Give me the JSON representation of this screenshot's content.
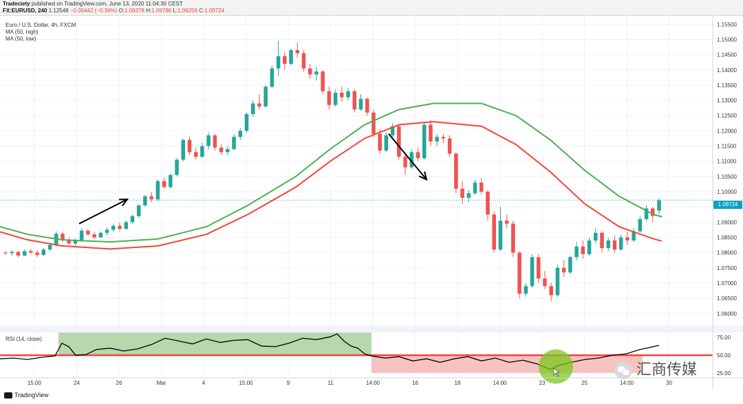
{
  "header": {
    "publisher": "Tradeciety",
    "published_text": "published on TradingView.com, June 13, 2020 11:04:30 CEST",
    "symbol": "FX:EURUSD, 240",
    "last": "1.12548",
    "change": "−0.00442 (−0.39%)",
    "ohlc_label_o": "O:",
    "ohlc_o": "1.09378",
    "ohlc_label_h": "H:",
    "ohlc_h": "1.09786",
    "ohlc_label_l": "L:",
    "ohlc_l": "1.09259",
    "ohlc_label_c": "C:",
    "ohlc_c": "1.09724"
  },
  "legend": {
    "instrument": "Euro / U.S. Dollar, 4h, FXCM",
    "ma_high": "MA (50, high)",
    "ma_low": "MA (50, low)"
  },
  "rsi_title": "RSI (14, close)",
  "last_price_label": "1.09724",
  "footer": {
    "logo_text": "TradingView"
  },
  "watermark": "汇商传媒",
  "colors": {
    "bull": "#26a69a",
    "bear": "#ef5350",
    "ma_high": "#4caf50",
    "ma_low": "#f44336",
    "rsi_line": "#000000",
    "rsi_level": "#f44336",
    "overbought_fill": "#b7d7ae",
    "oversold_fill": "#f6c3c0",
    "price_line": "#0aa2c0"
  },
  "chart_data": [
    {
      "type": "candlestick",
      "title": "Euro / U.S. Dollar, 4h, FXCM",
      "ylim": [
        1.056,
        1.158
      ],
      "y_ticks": [
        "1.15500",
        "1.15000",
        "1.14500",
        "1.14000",
        "1.13500",
        "1.13000",
        "1.12500",
        "1.12000",
        "1.11500",
        "1.11000",
        "1.10500",
        "1.10000",
        "1.09500",
        "1.09000",
        "1.08500",
        "1.08000",
        "1.07500",
        "1.07000",
        "1.06500",
        "1.06000"
      ],
      "x_tick_labels": [
        "15:00",
        "24",
        "26",
        "Mar",
        "4",
        "15:00",
        "9",
        "11",
        "14:00",
        "16",
        "18",
        "14:00",
        "23",
        "25",
        "14:00",
        "30"
      ],
      "last_price": 1.09724,
      "ohlc": [
        [
          1.08,
          1.0805,
          1.0792,
          1.0798
        ],
        [
          1.0798,
          1.0808,
          1.079,
          1.0802
        ],
        [
          1.0802,
          1.0806,
          1.0785,
          1.079
        ],
        [
          1.079,
          1.081,
          1.0788,
          1.0805
        ],
        [
          1.0805,
          1.0812,
          1.0795,
          1.08
        ],
        [
          1.08,
          1.0808,
          1.0785,
          1.0792
        ],
        [
          1.0792,
          1.0815,
          1.079,
          1.081
        ],
        [
          1.081,
          1.083,
          1.0805,
          1.0825
        ],
        [
          1.0825,
          1.087,
          1.082,
          1.0862
        ],
        [
          1.0862,
          1.0868,
          1.0835,
          1.0842
        ],
        [
          1.0842,
          1.085,
          1.0825,
          1.083
        ],
        [
          1.083,
          1.0845,
          1.082,
          1.0838
        ],
        [
          1.0838,
          1.088,
          1.0835,
          1.0872
        ],
        [
          1.0872,
          1.0878,
          1.0855,
          1.086
        ],
        [
          1.086,
          1.0868,
          1.0845,
          1.085
        ],
        [
          1.085,
          1.087,
          1.0848,
          1.0865
        ],
        [
          1.0865,
          1.0882,
          1.0855,
          1.0875
        ],
        [
          1.0875,
          1.0895,
          1.0868,
          1.0888
        ],
        [
          1.0888,
          1.0898,
          1.087,
          1.0878
        ],
        [
          1.0878,
          1.0905,
          1.0875,
          1.09
        ],
        [
          1.09,
          1.0925,
          1.0895,
          1.092
        ],
        [
          1.092,
          1.096,
          1.0915,
          1.0955
        ],
        [
          1.0955,
          1.099,
          1.095,
          1.0985
        ],
        [
          1.0985,
          1.1,
          1.0965,
          1.0975
        ],
        [
          1.0975,
          1.104,
          1.097,
          1.1035
        ],
        [
          1.1035,
          1.1045,
          1.101,
          1.1015
        ],
        [
          1.1015,
          1.106,
          1.101,
          1.1055
        ],
        [
          1.1055,
          1.111,
          1.105,
          1.1105
        ],
        [
          1.1105,
          1.1175,
          1.11,
          1.117
        ],
        [
          1.117,
          1.118,
          1.112,
          1.113
        ],
        [
          1.113,
          1.1145,
          1.1105,
          1.1115
        ],
        [
          1.1115,
          1.116,
          1.111,
          1.115
        ],
        [
          1.115,
          1.1195,
          1.114,
          1.1185
        ],
        [
          1.1185,
          1.119,
          1.1135,
          1.1145
        ],
        [
          1.1145,
          1.1155,
          1.112,
          1.113
        ],
        [
          1.113,
          1.115,
          1.112,
          1.114
        ],
        [
          1.114,
          1.119,
          1.1135,
          1.118
        ],
        [
          1.118,
          1.121,
          1.117,
          1.12
        ],
        [
          1.12,
          1.126,
          1.1195,
          1.1255
        ],
        [
          1.1255,
          1.13,
          1.1245,
          1.129
        ],
        [
          1.129,
          1.132,
          1.127,
          1.128
        ],
        [
          1.128,
          1.135,
          1.1275,
          1.1345
        ],
        [
          1.1345,
          1.1415,
          1.134,
          1.1405
        ],
        [
          1.1405,
          1.1495,
          1.138,
          1.1445
        ],
        [
          1.1445,
          1.146,
          1.14,
          1.142
        ],
        [
          1.142,
          1.147,
          1.1415,
          1.1465
        ],
        [
          1.1465,
          1.149,
          1.144,
          1.1455
        ],
        [
          1.1455,
          1.1465,
          1.1395,
          1.1405
        ],
        [
          1.1405,
          1.142,
          1.137,
          1.1385
        ],
        [
          1.1385,
          1.141,
          1.1365,
          1.1395
        ],
        [
          1.1395,
          1.14,
          1.132,
          1.133
        ],
        [
          1.133,
          1.1345,
          1.127,
          1.1285
        ],
        [
          1.1285,
          1.1335,
          1.128,
          1.1325
        ],
        [
          1.1325,
          1.1345,
          1.1295,
          1.131
        ],
        [
          1.131,
          1.134,
          1.13,
          1.133
        ],
        [
          1.133,
          1.1335,
          1.126,
          1.127
        ],
        [
          1.127,
          1.132,
          1.1265,
          1.1305
        ],
        [
          1.1305,
          1.131,
          1.125,
          1.126
        ],
        [
          1.126,
          1.127,
          1.118,
          1.119
        ],
        [
          1.119,
          1.1205,
          1.1125,
          1.1135
        ],
        [
          1.1135,
          1.1195,
          1.113,
          1.1185
        ],
        [
          1.1185,
          1.1225,
          1.1175,
          1.1215
        ],
        [
          1.1215,
          1.122,
          1.1105,
          1.1115
        ],
        [
          1.1115,
          1.1125,
          1.1055,
          1.108
        ],
        [
          1.108,
          1.114,
          1.1075,
          1.113
        ],
        [
          1.113,
          1.1145,
          1.11,
          1.111
        ],
        [
          1.111,
          1.123,
          1.1105,
          1.122
        ],
        [
          1.122,
          1.1235,
          1.115,
          1.1165
        ],
        [
          1.1165,
          1.119,
          1.115,
          1.118
        ],
        [
          1.118,
          1.119,
          1.116,
          1.1175
        ],
        [
          1.1175,
          1.1185,
          1.1115,
          1.1125
        ],
        [
          1.1125,
          1.113,
          1.0995,
          1.101
        ],
        [
          1.101,
          1.1035,
          1.096,
          1.098
        ],
        [
          1.098,
          1.1005,
          1.0965,
          1.0995
        ],
        [
          1.0995,
          1.104,
          1.099,
          1.103
        ],
        [
          1.103,
          1.1045,
          1.099,
          1.1
        ],
        [
          1.1,
          1.1005,
          1.0905,
          1.0925
        ],
        [
          1.0925,
          1.0935,
          1.08,
          1.081
        ],
        [
          1.081,
          1.095,
          1.0805,
          1.0905
        ],
        [
          1.0905,
          1.0925,
          1.088,
          1.0895
        ],
        [
          1.0895,
          1.0905,
          1.0785,
          1.08
        ],
        [
          1.08,
          1.0805,
          1.065,
          1.0665
        ],
        [
          1.0665,
          1.07,
          1.0655,
          1.069
        ],
        [
          1.069,
          1.0795,
          1.0685,
          1.0785
        ],
        [
          1.0785,
          1.0795,
          1.07,
          1.0715
        ],
        [
          1.0715,
          1.074,
          1.068,
          1.069
        ],
        [
          1.069,
          1.07,
          1.064,
          1.066
        ],
        [
          1.066,
          1.076,
          1.0655,
          1.075
        ],
        [
          1.075,
          1.0775,
          1.072,
          1.0735
        ],
        [
          1.0735,
          1.079,
          1.073,
          1.0785
        ],
        [
          1.0785,
          1.0835,
          1.0775,
          1.082
        ],
        [
          1.082,
          1.084,
          1.078,
          1.0795
        ],
        [
          1.0795,
          1.085,
          1.079,
          1.084
        ],
        [
          1.084,
          1.088,
          1.083,
          1.0865
        ],
        [
          1.0865,
          1.087,
          1.08,
          1.0815
        ],
        [
          1.0815,
          1.085,
          1.0805,
          1.084
        ],
        [
          1.084,
          1.0855,
          1.08,
          1.081
        ],
        [
          1.081,
          1.086,
          1.0805,
          1.085
        ],
        [
          1.085,
          1.087,
          1.0825,
          1.084
        ],
        [
          1.084,
          1.088,
          1.0835,
          1.087
        ],
        [
          1.087,
          1.092,
          1.0865,
          1.091
        ],
        [
          1.091,
          1.0955,
          1.0905,
          1.0945
        ],
        [
          1.0945,
          1.095,
          1.09,
          1.092
        ],
        [
          1.0938,
          1.0979,
          1.0926,
          1.0972
        ]
      ],
      "ma_high": [
        [
          0,
          1.0885
        ],
        [
          40,
          1.086
        ],
        [
          90,
          1.0842
        ],
        [
          160,
          1.0835
        ],
        [
          230,
          1.0845
        ],
        [
          300,
          1.0885
        ],
        [
          360,
          1.0955
        ],
        [
          430,
          1.105
        ],
        [
          480,
          1.114
        ],
        [
          530,
          1.122
        ],
        [
          580,
          1.127
        ],
        [
          630,
          1.129
        ],
        [
          700,
          1.129
        ],
        [
          750,
          1.125
        ],
        [
          800,
          1.117
        ],
        [
          850,
          1.107
        ],
        [
          900,
          1.0985
        ],
        [
          950,
          1.0925
        ],
        [
          962,
          1.0918
        ]
      ],
      "ma_low": [
        [
          0,
          1.0868
        ],
        [
          40,
          1.0842
        ],
        [
          90,
          1.0822
        ],
        [
          160,
          1.0812
        ],
        [
          230,
          1.0822
        ],
        [
          300,
          1.086
        ],
        [
          360,
          1.0925
        ],
        [
          430,
          1.1015
        ],
        [
          480,
          1.11
        ],
        [
          530,
          1.1175
        ],
        [
          580,
          1.122
        ],
        [
          630,
          1.123
        ],
        [
          700,
          1.1215
        ],
        [
          750,
          1.1155
        ],
        [
          800,
          1.1065
        ],
        [
          850,
          1.096
        ],
        [
          900,
          1.0885
        ],
        [
          950,
          1.0845
        ],
        [
          962,
          1.0838
        ]
      ],
      "arrows": [
        {
          "from": [
            115,
            1.0895
          ],
          "to": [
            185,
            1.0975
          ]
        },
        {
          "from": [
            565,
            1.119
          ],
          "to": [
            620,
            1.104
          ]
        }
      ]
    },
    {
      "type": "line",
      "title": "RSI (14, close)",
      "ylim": [
        20,
        82
      ],
      "y_ticks": [
        "75.00",
        "50.00",
        "25.00"
      ],
      "level": 50,
      "overbought_zone": {
        "x_from": 85,
        "x_to": 540,
        "y_from": 50,
        "y_to": 82
      },
      "oversold_zone": {
        "x_from": 540,
        "x_to": 934,
        "y_from": 25,
        "y_to": 50
      },
      "series": [
        {
          "values": [
            [
              0,
              45
            ],
            [
              20,
              46
            ],
            [
              40,
              44
            ],
            [
              60,
              47
            ],
            [
              80,
              49
            ],
            [
              90,
              67
            ],
            [
              100,
              62
            ],
            [
              110,
              50
            ],
            [
              125,
              51
            ],
            [
              140,
              58
            ],
            [
              160,
              60
            ],
            [
              180,
              56
            ],
            [
              200,
              59
            ],
            [
              220,
              65
            ],
            [
              240,
              74
            ],
            [
              260,
              70
            ],
            [
              280,
              66
            ],
            [
              300,
              73
            ],
            [
              320,
              68
            ],
            [
              340,
              71
            ],
            [
              360,
              72
            ],
            [
              380,
              63
            ],
            [
              400,
              62
            ],
            [
              420,
              67
            ],
            [
              440,
              74
            ],
            [
              460,
              72
            ],
            [
              480,
              76
            ],
            [
              490,
              80
            ],
            [
              500,
              70
            ],
            [
              510,
              63
            ],
            [
              520,
              60
            ],
            [
              530,
              52
            ],
            [
              540,
              49
            ],
            [
              560,
              46
            ],
            [
              580,
              48
            ],
            [
              600,
              42
            ],
            [
              620,
              45
            ],
            [
              640,
              40
            ],
            [
              660,
              45
            ],
            [
              680,
              48
            ],
            [
              700,
              42
            ],
            [
              720,
              46
            ],
            [
              740,
              40
            ],
            [
              760,
              43
            ],
            [
              780,
              38
            ],
            [
              800,
              30
            ],
            [
              810,
              35
            ],
            [
              830,
              40
            ],
            [
              850,
              44
            ],
            [
              870,
              46
            ],
            [
              890,
              50
            ],
            [
              910,
              52
            ],
            [
              930,
              58
            ],
            [
              945,
              61
            ],
            [
              958,
              64
            ]
          ]
        }
      ]
    }
  ]
}
